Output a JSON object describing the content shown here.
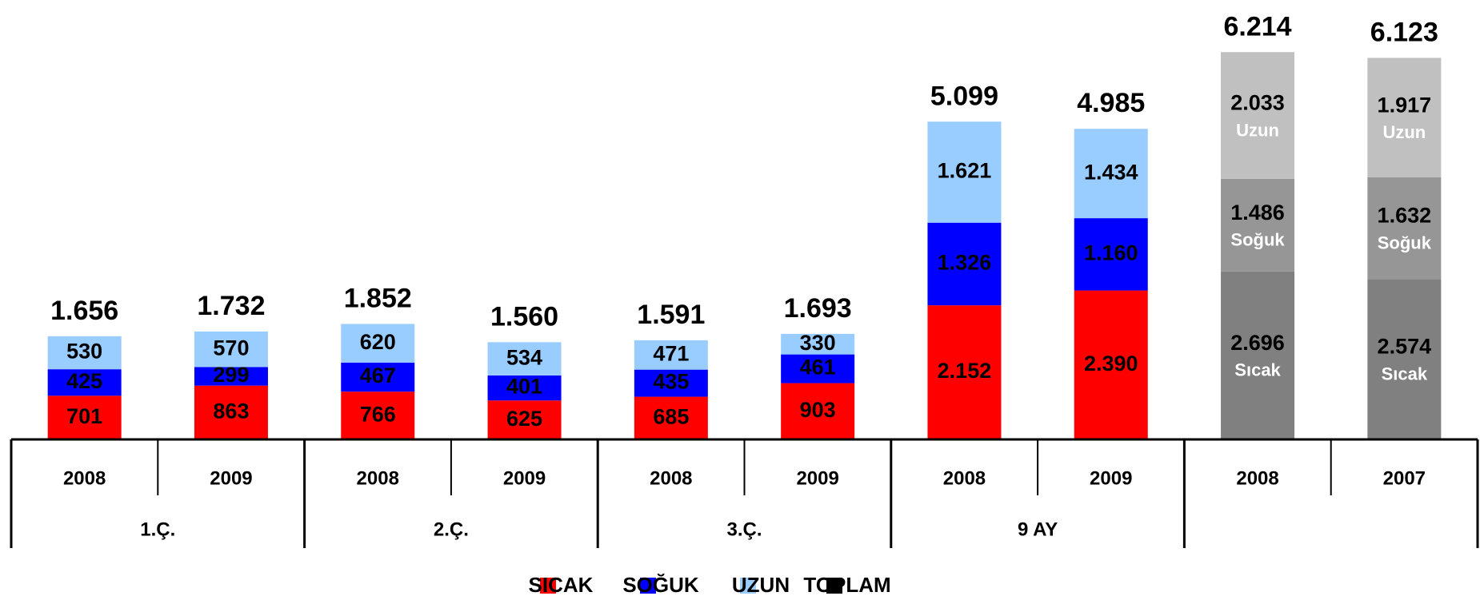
{
  "chart_data": {
    "type": "stacked-bar",
    "categories": [
      "2008",
      "2009",
      "2008",
      "2009",
      "2008",
      "2009",
      "2008",
      "2009",
      "2008",
      "2007"
    ],
    "groups": [
      {
        "label": "1.Ç.",
        "size": 2
      },
      {
        "label": "2.Ç.",
        "size": 2
      },
      {
        "label": "3.Ç.",
        "size": 2
      },
      {
        "label": "9 AY",
        "size": 2
      },
      {
        "label": null,
        "size": 2
      }
    ],
    "series": [
      {
        "name": "SICAK",
        "color": "#ff0000",
        "values": [
          701,
          863,
          766,
          625,
          685,
          903,
          2152,
          2390,
          2696,
          2574
        ],
        "value_labels": [
          "701",
          "863",
          "766",
          "625",
          "685",
          "903",
          "2.152",
          "2.390",
          "2.696",
          "2.574"
        ],
        "colors": [
          "#ff0000",
          "#ff0000",
          "#ff0000",
          "#ff0000",
          "#ff0000",
          "#ff0000",
          "#ff0000",
          "#ff0000",
          "#808080",
          "#808080"
        ],
        "inner_labels": [
          null,
          null,
          null,
          null,
          null,
          null,
          null,
          null,
          "Sıcak",
          "Sıcak"
        ]
      },
      {
        "name": "SOĞUK",
        "color": "#0000ff",
        "values": [
          425,
          299,
          467,
          401,
          435,
          461,
          1326,
          1160,
          1486,
          1632
        ],
        "value_labels": [
          "425",
          "299",
          "467",
          "401",
          "435",
          "461",
          "1.326",
          "1.160",
          "1.486",
          "1.632"
        ],
        "colors": [
          "#0000ff",
          "#0000ff",
          "#0000ff",
          "#0000ff",
          "#0000ff",
          "#0000ff",
          "#0000ff",
          "#0000ff",
          "#969696",
          "#969696"
        ],
        "inner_labels": [
          null,
          null,
          null,
          null,
          null,
          null,
          null,
          null,
          "Soğuk",
          "Soğuk"
        ]
      },
      {
        "name": "UZUN",
        "color": "#99ccff",
        "values": [
          530,
          570,
          620,
          534,
          471,
          330,
          1621,
          1434,
          2033,
          1917
        ],
        "value_labels": [
          "530",
          "570",
          "620",
          "534",
          "471",
          "330",
          "1.621",
          "1.434",
          "2.033",
          "1.917"
        ],
        "colors": [
          "#99ccff",
          "#99ccff",
          "#99ccff",
          "#99ccff",
          "#99ccff",
          "#99ccff",
          "#99ccff",
          "#99ccff",
          "#c0c0c0",
          "#c0c0c0"
        ],
        "inner_labels": [
          null,
          null,
          null,
          null,
          null,
          null,
          null,
          null,
          "Uzun",
          "Uzun"
        ]
      }
    ],
    "totals": {
      "name": "TOPLAM",
      "color": "#000000",
      "values": [
        1656,
        1732,
        1852,
        1560,
        1591,
        1693,
        5099,
        4985,
        6214,
        6123
      ],
      "value_labels": [
        "1.656",
        "1.732",
        "1.852",
        "1.560",
        "1.591",
        "1.693",
        "5.099",
        "4.985",
        "6.214",
        "6.123"
      ]
    }
  }
}
